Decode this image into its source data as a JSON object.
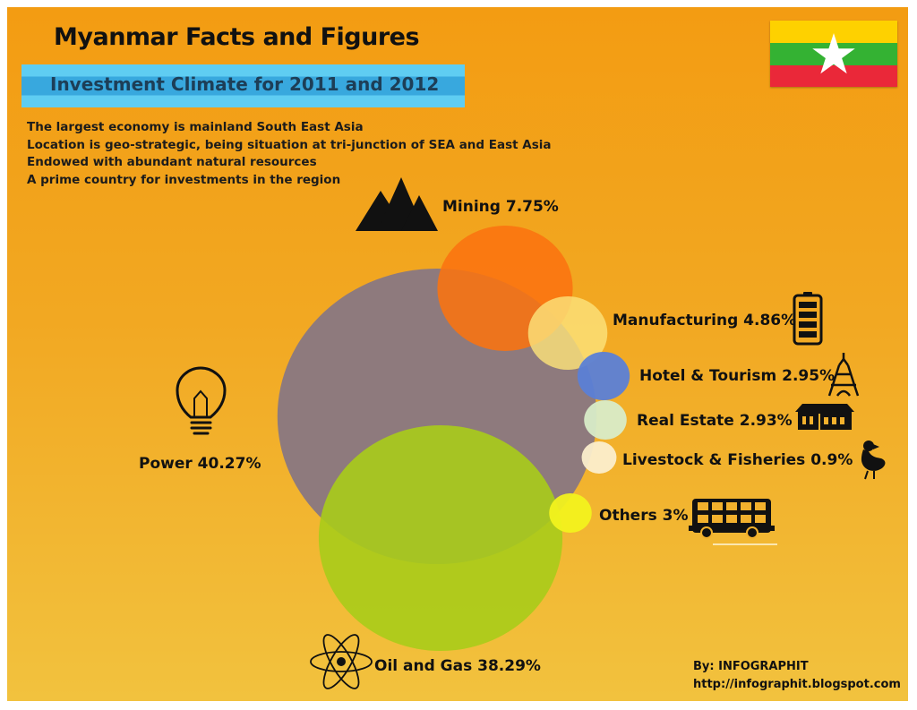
{
  "title": "Myanmar Facts and Figures",
  "subtitle": "Investment Climate for 2011 and 2012",
  "facts": [
    "The largest economy is mainland South East Asia",
    "Location is geo-strategic, being situation at tri-junction of SEA and East Asia",
    "Endowed with abundant natural resources",
    "A prime country for investments in the region"
  ],
  "credit": {
    "by": "By: INFOGRAPHIT",
    "url": "http://infographit.blogspot.com"
  },
  "flag": {
    "stripes": [
      "#fed100",
      "#34b233",
      "#ea2839"
    ],
    "star_color": "#ffffff"
  },
  "chart_data": {
    "type": "bubble",
    "title": "",
    "unit": "%",
    "series": [
      {
        "name": "Power",
        "label": "Power 40.27%",
        "value": 40.27,
        "color": "#8e7a7d",
        "icon": "lightbulb-icon"
      },
      {
        "name": "Oil and Gas",
        "label": "Oil and Gas 38.29%",
        "value": 38.29,
        "color": "#a8cc1a",
        "icon": "atom-icon"
      },
      {
        "name": "Mining",
        "label": "Mining 7.75%",
        "value": 7.75,
        "color": "#fb7310",
        "icon": "mountains-icon"
      },
      {
        "name": "Manufacturing",
        "label": "Manufacturing 4.86%",
        "value": 4.86,
        "color": "#fbe27a",
        "icon": "battery-icon"
      },
      {
        "name": "Hotel & Tourism",
        "label": "Hotel & Tourism 2.95%",
        "value": 2.95,
        "color": "#5b7fd6",
        "icon": "eiffel-tower-icon"
      },
      {
        "name": "Real Estate",
        "label": "Real Estate 2.93%",
        "value": 2.93,
        "color": "#d8ecc8",
        "icon": "building-icon"
      },
      {
        "name": "Livestock & Fisheries",
        "label": "Livestock & Fisheries 0.9%",
        "value": 0.9,
        "color": "#fbeecc",
        "icon": "duck-icon"
      },
      {
        "name": "Others",
        "label": "Others 3%",
        "value": 3,
        "color": "#f2f21e",
        "icon": "bus-icon"
      }
    ]
  }
}
